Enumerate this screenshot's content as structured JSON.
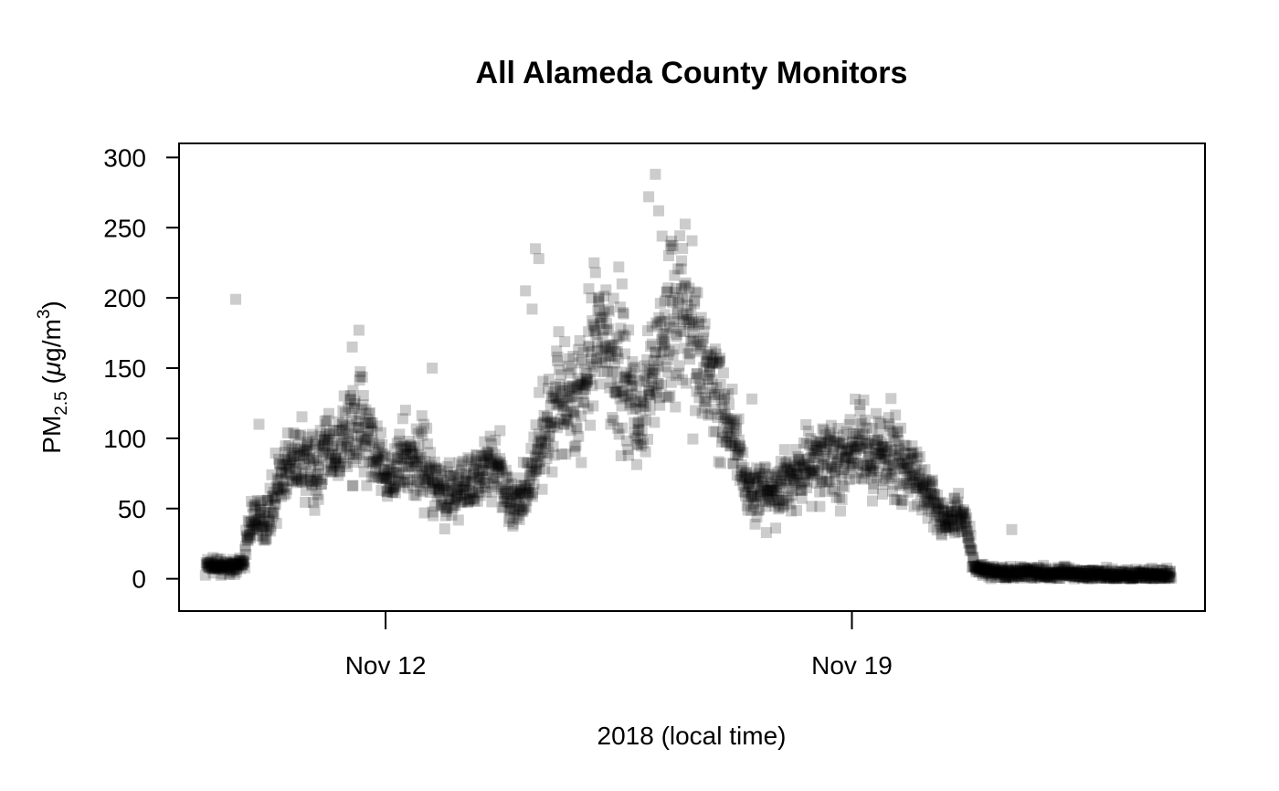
{
  "chart_data": {
    "type": "scatter",
    "title": "All Alameda County Monitors",
    "xlabel": "2018  (local time)",
    "ylabel": {
      "base": "PM",
      "sub": "2.5",
      "unit_open": " (",
      "mu": "μ",
      "unit": "g/m",
      "sup": "3",
      "unit_close": ")"
    },
    "x_unit": "days (November 2018)",
    "xlim": [
      8.9,
      24.3
    ],
    "ylim": [
      -23,
      310
    ],
    "x_ticks": [
      {
        "value": 12,
        "label": "Nov 12"
      },
      {
        "value": 19,
        "label": "Nov 19"
      }
    ],
    "y_ticks": [
      0,
      50,
      100,
      150,
      200,
      250,
      300
    ],
    "marker": "filled-square",
    "marker_color": "#000000",
    "marker_opacity": 0.2,
    "grid": false,
    "legend": "none",
    "trend_profile": [
      [
        9.3,
        10
      ],
      [
        9.6,
        8
      ],
      [
        9.85,
        10
      ],
      [
        10.0,
        45
      ],
      [
        10.2,
        40
      ],
      [
        10.4,
        70
      ],
      [
        10.6,
        80
      ],
      [
        10.8,
        85
      ],
      [
        11.0,
        78
      ],
      [
        11.1,
        95
      ],
      [
        11.2,
        80
      ],
      [
        11.4,
        100
      ],
      [
        11.6,
        115
      ],
      [
        11.75,
        110
      ],
      [
        11.85,
        85
      ],
      [
        12.0,
        70
      ],
      [
        12.2,
        80
      ],
      [
        12.4,
        88
      ],
      [
        12.6,
        80
      ],
      [
        12.8,
        65
      ],
      [
        13.0,
        60
      ],
      [
        13.2,
        65
      ],
      [
        13.4,
        75
      ],
      [
        13.6,
        85
      ],
      [
        13.8,
        65
      ],
      [
        14.0,
        50
      ],
      [
        14.2,
        75
      ],
      [
        14.4,
        100
      ],
      [
        14.6,
        135
      ],
      [
        14.8,
        125
      ],
      [
        15.0,
        140
      ],
      [
        15.2,
        165
      ],
      [
        15.4,
        160
      ],
      [
        15.6,
        140
      ],
      [
        15.8,
        110
      ],
      [
        16.0,
        150
      ],
      [
        16.2,
        175
      ],
      [
        16.35,
        200
      ],
      [
        16.5,
        190
      ],
      [
        16.7,
        165
      ],
      [
        16.9,
        140
      ],
      [
        17.1,
        120
      ],
      [
        17.3,
        95
      ],
      [
        17.4,
        65
      ],
      [
        17.6,
        58
      ],
      [
        17.8,
        60
      ],
      [
        18.0,
        68
      ],
      [
        18.2,
        78
      ],
      [
        18.4,
        85
      ],
      [
        18.6,
        90
      ],
      [
        18.8,
        82
      ],
      [
        19.0,
        88
      ],
      [
        19.2,
        92
      ],
      [
        19.4,
        85
      ],
      [
        19.6,
        90
      ],
      [
        19.8,
        80
      ],
      [
        20.0,
        70
      ],
      [
        20.2,
        55
      ],
      [
        20.4,
        40
      ],
      [
        20.6,
        50
      ],
      [
        20.75,
        30
      ],
      [
        20.85,
        8
      ],
      [
        21.2,
        4
      ],
      [
        21.6,
        5
      ],
      [
        22.0,
        4
      ],
      [
        22.5,
        3
      ],
      [
        23.0,
        3
      ],
      [
        23.8,
        2
      ]
    ],
    "outliers": [
      [
        9.75,
        199
      ],
      [
        11.6,
        177
      ],
      [
        11.5,
        165
      ],
      [
        12.7,
        150
      ],
      [
        14.3,
        228
      ],
      [
        14.25,
        235
      ],
      [
        14.1,
        205
      ],
      [
        14.2,
        192
      ],
      [
        15.5,
        222
      ],
      [
        15.55,
        210
      ],
      [
        16.05,
        288
      ],
      [
        15.95,
        272
      ],
      [
        16.1,
        262
      ],
      [
        16.15,
        244
      ],
      [
        16.25,
        230
      ],
      [
        21.4,
        35
      ],
      [
        12.3,
        120
      ],
      [
        10.1,
        110
      ],
      [
        17.5,
        128
      ],
      [
        19.4,
        112
      ]
    ]
  }
}
